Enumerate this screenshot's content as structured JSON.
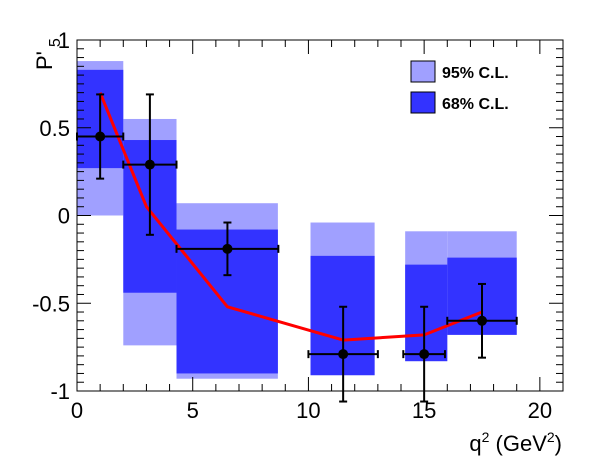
{
  "chart_data": {
    "type": "bar",
    "title": "",
    "xlabel": "q",
    "xlabel_sup": "2",
    "xlabel_unit_pre": " (GeV",
    "xlabel_unit_sup": "2",
    "xlabel_unit_post": ")",
    "ylabel": "P'",
    "ylabel_sub": "5",
    "xlim": [
      0,
      21
    ],
    "ylim": [
      -1,
      1
    ],
    "x_ticks": [
      0,
      5,
      10,
      15,
      20
    ],
    "x_tick_labels": [
      "0",
      "5",
      "10",
      "15",
      "20"
    ],
    "y_ticks": [
      -1,
      -0.5,
      0,
      0.5,
      1
    ],
    "y_tick_labels": [
      "-1",
      "-0.5",
      "0",
      "0.5",
      "1"
    ],
    "colors": {
      "cl95": "#a0a0ff",
      "cl68": "#3333ff",
      "prediction": "#ff0000",
      "data": "#000000"
    },
    "legend": {
      "position": "top-right",
      "entries": [
        {
          "label": "95% C.L.",
          "color": "#a0a0ff"
        },
        {
          "label": "68% C.L.",
          "color": "#3333ff"
        }
      ]
    },
    "bands_95": [
      {
        "x": [
          0,
          2
        ],
        "y": [
          0.0,
          0.88
        ]
      },
      {
        "x": [
          2,
          4.3
        ],
        "y": [
          -0.74,
          0.55
        ]
      },
      {
        "x": [
          4.3,
          8.68
        ],
        "y": [
          -0.93,
          0.07
        ]
      },
      {
        "x": [
          10.09,
          12.86
        ],
        "y": [
          -0.91,
          -0.04
        ]
      },
      {
        "x": [
          14.18,
          16
        ],
        "y": [
          -0.83,
          -0.09
        ]
      },
      {
        "x": [
          16,
          19
        ],
        "y": [
          -0.68,
          -0.09
        ]
      }
    ],
    "bands_68": [
      {
        "x": [
          0,
          2
        ],
        "y": [
          0.27,
          0.83
        ]
      },
      {
        "x": [
          2,
          4.3
        ],
        "y": [
          -0.44,
          0.43
        ]
      },
      {
        "x": [
          4.3,
          8.68
        ],
        "y": [
          -0.9,
          -0.08
        ]
      },
      {
        "x": [
          10.09,
          12.86
        ],
        "y": [
          -0.91,
          -0.23
        ]
      },
      {
        "x": [
          14.18,
          16
        ],
        "y": [
          -0.83,
          -0.28
        ]
      },
      {
        "x": [
          16,
          19
        ],
        "y": [
          -0.68,
          -0.24
        ]
      }
    ],
    "series": [
      {
        "type": "line",
        "x": [
          1.0,
          3.0,
          6.5,
          11.5,
          15.0,
          17.5
        ],
        "y": [
          0.7,
          0.05,
          -0.52,
          -0.71,
          -0.68,
          -0.55
        ]
      },
      {
        "type": "scatter",
        "x": [
          1.0,
          3.15,
          6.5,
          11.5,
          15.0,
          17.5
        ],
        "y": [
          0.45,
          0.29,
          -0.19,
          -0.79,
          -0.79,
          -0.6
        ],
        "xerr_low": [
          1.0,
          1.15,
          2.2,
          1.5,
          0.9,
          1.5
        ],
        "xerr_high": [
          1.0,
          1.15,
          2.2,
          1.5,
          0.9,
          1.5
        ],
        "yerr_low": [
          0.24,
          0.4,
          0.15,
          0.27,
          0.27,
          0.21
        ],
        "yerr_high": [
          0.24,
          0.4,
          0.15,
          0.27,
          0.27,
          0.21
        ]
      }
    ]
  }
}
